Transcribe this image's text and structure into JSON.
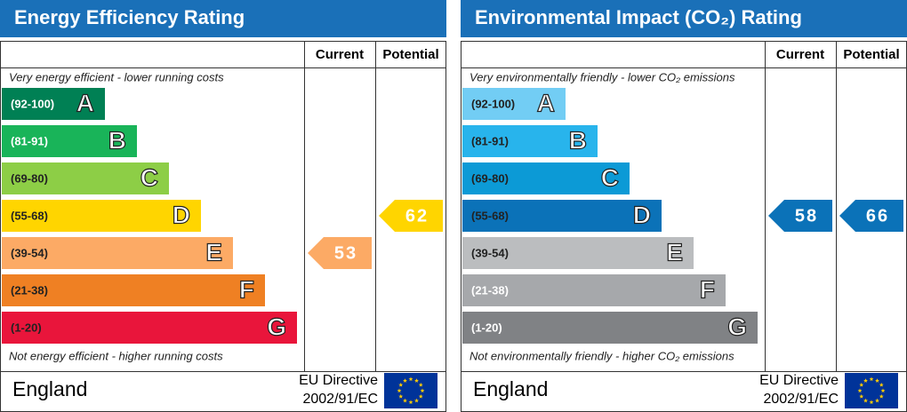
{
  "panels": [
    {
      "title": "Energy Efficiency Rating",
      "current_header": "Current",
      "potential_header": "Potential",
      "top_note": "Very energy efficient - lower running costs",
      "bottom_note": "Not energy efficient - higher running costs",
      "bands": [
        {
          "range": "(92-100)",
          "letter": "A",
          "color": "#008054",
          "text_color": "#ffffff"
        },
        {
          "range": "(81-91)",
          "letter": "B",
          "color": "#19b459",
          "text_color": "#ffffff"
        },
        {
          "range": "(69-80)",
          "letter": "C",
          "color": "#8dce46",
          "text_color": "#222222"
        },
        {
          "range": "(55-68)",
          "letter": "D",
          "color": "#ffd500",
          "text_color": "#222222"
        },
        {
          "range": "(39-54)",
          "letter": "E",
          "color": "#fcaa65",
          "text_color": "#222222"
        },
        {
          "range": "(21-38)",
          "letter": "F",
          "color": "#ef8023",
          "text_color": "#222222"
        },
        {
          "range": "(1-20)",
          "letter": "G",
          "color": "#e9153b",
          "text_color": "#222222"
        }
      ],
      "current": 53,
      "potential": 62,
      "country": "England",
      "directive_line1": "EU Directive",
      "directive_line2": "2002/91/EC"
    },
    {
      "title": "Environmental Impact (CO₂) Rating",
      "current_header": "Current",
      "potential_header": "Potential",
      "top_note": "Very environmentally friendly - lower CO₂ emissions",
      "bottom_note": "Not environmentally friendly - higher CO₂ emissions",
      "bands": [
        {
          "range": "(92-100)",
          "letter": "A",
          "color": "#72cdf4",
          "text_color": "#222222"
        },
        {
          "range": "(81-91)",
          "letter": "B",
          "color": "#28b4ec",
          "text_color": "#222222"
        },
        {
          "range": "(69-80)",
          "letter": "C",
          "color": "#0c9ad6",
          "text_color": "#222222"
        },
        {
          "range": "(55-68)",
          "letter": "D",
          "color": "#0b72b8",
          "text_color": "#222222"
        },
        {
          "range": "(39-54)",
          "letter": "E",
          "color": "#bbbdbf",
          "text_color": "#222222"
        },
        {
          "range": "(21-38)",
          "letter": "F",
          "color": "#a6a8ab",
          "text_color": "#ffffff"
        },
        {
          "range": "(1-20)",
          "letter": "G",
          "color": "#808285",
          "text_color": "#ffffff"
        }
      ],
      "current": 58,
      "potential": 66,
      "country": "England",
      "directive_line1": "EU Directive",
      "directive_line2": "2002/91/EC"
    }
  ]
}
